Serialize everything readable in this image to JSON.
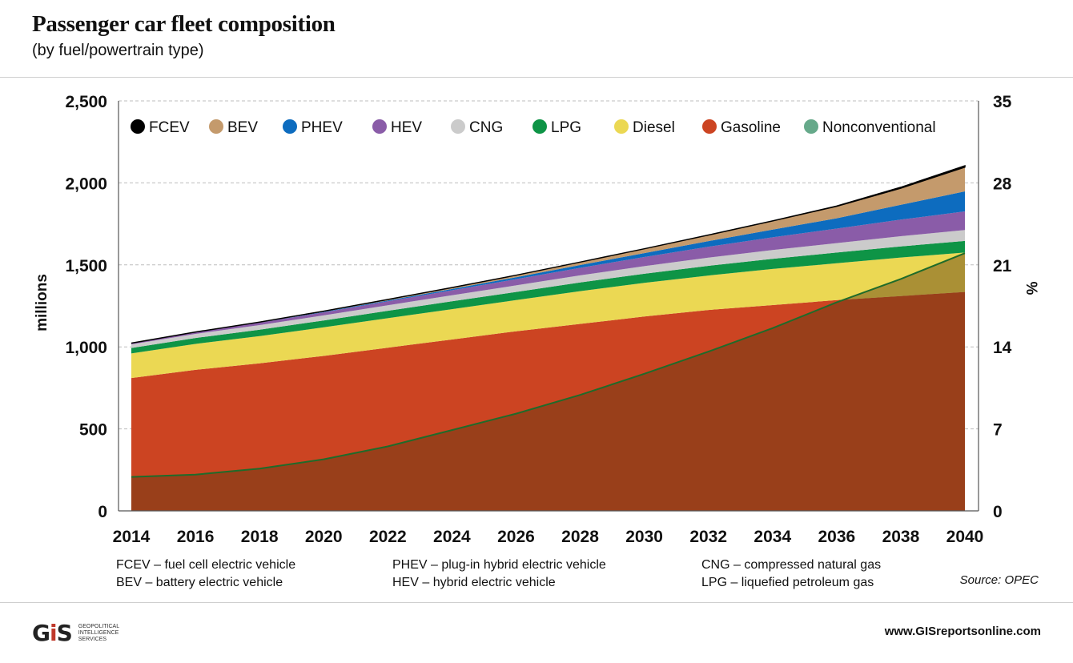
{
  "header": {
    "title": "Passenger car fleet composition",
    "subtitle": "(by fuel/powertrain type)"
  },
  "chart_data": {
    "type": "area",
    "stacked": true,
    "x": [
      2014,
      2016,
      2018,
      2020,
      2022,
      2024,
      2026,
      2028,
      2030,
      2032,
      2034,
      2036,
      2038,
      2040
    ],
    "x_ticks": [
      "2014",
      "2016",
      "2018",
      "2020",
      "2022",
      "2024",
      "2026",
      "2028",
      "2030",
      "2032",
      "2034",
      "2036",
      "2038",
      "2040"
    ],
    "ylabel": "millions",
    "ylim": [
      0,
      2500
    ],
    "y_ticks": [
      "0",
      "500",
      "1,000",
      "1,500",
      "2,000",
      "2,500"
    ],
    "y2label": "%",
    "y2lim": [
      0,
      35
    ],
    "y2_ticks": [
      "0",
      "7",
      "14",
      "21",
      "28",
      "35"
    ],
    "grid": "dashed horizontal",
    "legend_position": "top",
    "series": [
      {
        "name": "Gasoline",
        "color": "#cc4422",
        "values": [
          810,
          860,
          900,
          945,
          995,
          1045,
          1095,
          1140,
          1185,
          1225,
          1255,
          1285,
          1310,
          1335
        ]
      },
      {
        "name": "Diesel",
        "color": "#ebd853",
        "values": [
          150,
          158,
          166,
          174,
          180,
          185,
          190,
          200,
          205,
          210,
          220,
          225,
          235,
          240
        ]
      },
      {
        "name": "LPG",
        "color": "#0e9446",
        "values": [
          33,
          36,
          39,
          42,
          45,
          48,
          50,
          53,
          56,
          59,
          62,
          65,
          68,
          71
        ]
      },
      {
        "name": "CNG",
        "color": "#cbcbcb",
        "values": [
          22,
          25,
          28,
          31,
          34,
          37,
          40,
          43,
          46,
          50,
          54,
          58,
          62,
          67
        ]
      },
      {
        "name": "Nonconventional",
        "color": "#66a98a",
        "values": [
          0,
          0,
          0,
          0,
          0,
          0,
          0,
          0,
          0,
          0,
          0,
          0,
          0,
          0
        ]
      },
      {
        "name": "HEV",
        "color": "#8a5ca8",
        "values": [
          8,
          12,
          15,
          19,
          24,
          30,
          38,
          46,
          56,
          67,
          77,
          88,
          101,
          113
        ]
      },
      {
        "name": "PHEV",
        "color": "#0d6cbf",
        "values": [
          0,
          0,
          1,
          3,
          5,
          8,
          12,
          17,
          24,
          34,
          47,
          63,
          90,
          122
        ]
      },
      {
        "name": "BEV",
        "color": "#c49a6c",
        "values": [
          0,
          0,
          2,
          4,
          6,
          9,
          12,
          18,
          26,
          37,
          53,
          73,
          102,
          148
        ]
      },
      {
        "name": "FCEV",
        "color": "#000000",
        "values": [
          0,
          0,
          0,
          0,
          0,
          0,
          0,
          0,
          0,
          0,
          0,
          2,
          5,
          8
        ]
      }
    ],
    "share_line": {
      "axis": "right",
      "unit": "%",
      "color": "#1f6b2a",
      "values": [
        2.9,
        3.1,
        3.6,
        4.4,
        5.5,
        6.9,
        8.3,
        9.9,
        11.7,
        13.6,
        15.6,
        17.8,
        19.8,
        22.0
      ]
    },
    "legend": [
      {
        "label": "FCEV",
        "color": "#000000"
      },
      {
        "label": "BEV",
        "color": "#c49a6c"
      },
      {
        "label": "PHEV",
        "color": "#0d6cbf"
      },
      {
        "label": "HEV",
        "color": "#8a5ca8"
      },
      {
        "label": "CNG",
        "color": "#cbcbcb"
      },
      {
        "label": "LPG",
        "color": "#0e9446"
      },
      {
        "label": "Diesel",
        "color": "#ebd853"
      },
      {
        "label": "Gasoline",
        "color": "#cc4422"
      },
      {
        "label": "Nonconventional",
        "color": "#66a98a"
      }
    ]
  },
  "notes": {
    "col1": [
      "FCEV – fuel cell electric vehicle",
      "BEV – battery electric vehicle"
    ],
    "col2": [
      "PHEV – plug-in hybrid electric vehicle",
      "HEV – hybrid electric vehicle"
    ],
    "col3": [
      "CNG – compressed natural gas",
      "LPG – liquefied petroleum gas"
    ]
  },
  "source": "Source: OPEC",
  "footer": {
    "logo_mark": "GIS",
    "logo_text": [
      "GEOPOLITICAL",
      "INTELLIGENCE",
      "SERVICES"
    ],
    "url": "www.GISreportsonline.com"
  }
}
